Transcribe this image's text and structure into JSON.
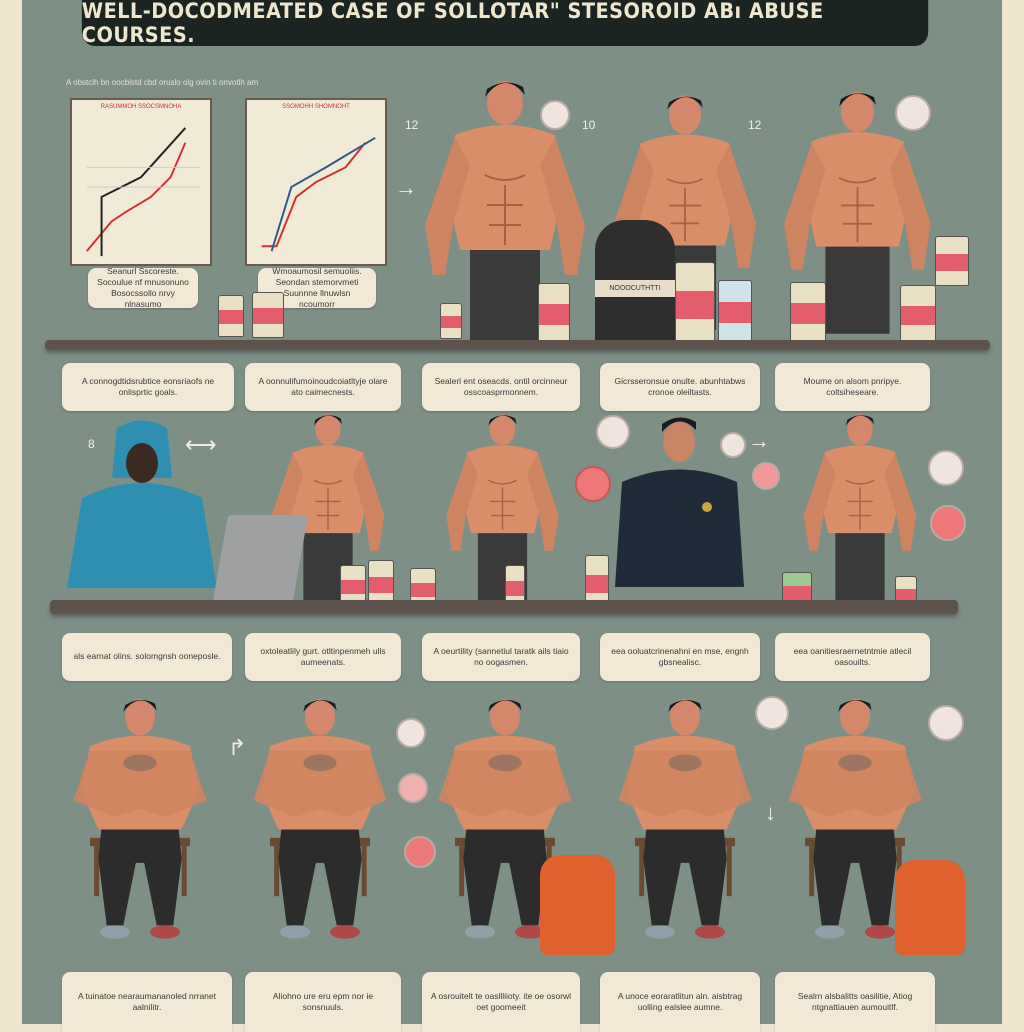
{
  "title": "WELL-DOCODMEATED CASE OF SOLLOTAR\" STESOROID ABı ABUSE COURSES.",
  "subtitle": "A obstclh bn oocblstd cbd oruslo olg ovin ti onvotlh am",
  "numbers": [
    "12",
    "10",
    "12",
    "8"
  ],
  "charts": [
    {
      "heading": "RASUMMOH SSOCSMNOHA"
    },
    {
      "heading": "SSOMOHH SHOMNOHT"
    }
  ],
  "row1_captions": [
    "Seanurl Sscoreste. Socoulue nf mnusonuno Bosocssollo nrvy nlnasumo",
    "Wmoaumosil semuoliis. Seondan stemorvmeti Suunnne llnuwlsn ncoumorr"
  ],
  "bag_label": "NOOOCUTHTTI",
  "row2_captions": [
    "A connogdtidsrubtice eonsriaofs ne onlisprtic goals.",
    "A oonnulifumoinoudcoiatltyje olare ato caimecnests.",
    "Sealerl ent oseacds. ontil orcinneur osscoasprmonnem.",
    "Gicrsseronsue onulte. abunhtabws cronoe oleiltasts.",
    "Moume on alsom pnripye. coltsiheseare."
  ],
  "row3_captions": [
    "als earnat olins. solomgnsh ooneposle.",
    "oxtoleatlily gurt. otltinpenmeh ulls aumeenats.",
    "A oeurtility (sannetiul taratk ails tiaio no oogasmen.",
    "eea ooluatcrinenahni en mse, engnh gbsnealisc.",
    "eea oanitiesraernetntmie atlecil oasouilts."
  ],
  "row4_captions": [
    "A tuinatoe nearaumananoled nrranet aalnilitr.",
    "Aliohno ure eru epm nor ie sonsnuuls.",
    "A osrouitelt te oasllliioty. ite oe osorwl oet goomeeit",
    "A unoce eoraratlitun aln. aisbtrag uolling ealslee aumne.",
    "Sealrn alsbalitts oasilitie, Atiog ntgnattiauen aumouitlf."
  ],
  "colors": {
    "background": "#7e8f86",
    "title_bar": "#1b2420",
    "caption_bg": "#f1e9d6",
    "shelf": "#5e534c",
    "skin": "#d98d68",
    "hoodie": "#2f8fb0",
    "uniform": "#1f2b38"
  }
}
